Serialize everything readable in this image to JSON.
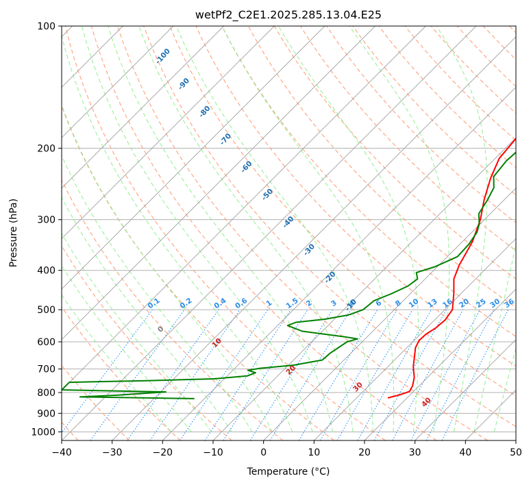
{
  "chart_data": {
    "type": "line",
    "title": "wetPf2_C2E1.2025.285.13.04.E25",
    "xlabel": "Temperature (°C)",
    "ylabel": "Pressure (hPa)",
    "xlim": [
      -40,
      50
    ],
    "ylim": [
      1050,
      100
    ],
    "y_scale": "log",
    "x_ticks": [
      "−40",
      "−30",
      "−20",
      "−10",
      "0",
      "10",
      "20",
      "30",
      "40",
      "50"
    ],
    "x_tick_values": [
      -40,
      -30,
      -20,
      -10,
      0,
      10,
      20,
      30,
      40,
      50
    ],
    "y_ticks": [
      "100",
      "200",
      "300",
      "400",
      "500",
      "600",
      "700",
      "800",
      "900",
      "1000"
    ],
    "y_tick_values": [
      100,
      200,
      300,
      400,
      500,
      600,
      700,
      800,
      900,
      1000
    ],
    "grid": true,
    "colors": {
      "temperature": "#ff0000",
      "dewpoint": "#008000",
      "isotherm": "#a0a0a0",
      "dry_adiabat": "#ffa07a",
      "moist_adiabat": "#90ee90",
      "mixing_ratio": "#1e90ff",
      "dry_adiabat_label": "#cc2222",
      "moist_adiabat_label": "#1f6fb0",
      "mixing_label": "#2c8ee8"
    },
    "series": [
      {
        "key": "temperature",
        "points": [
          [
            16.2,
            825
          ],
          [
            18.0,
            810
          ],
          [
            19.2,
            795
          ],
          [
            18.7,
            770
          ],
          [
            17.4,
            735
          ],
          [
            15.0,
            690
          ],
          [
            13.4,
            655
          ],
          [
            11.7,
            620
          ],
          [
            11.0,
            595
          ],
          [
            11.1,
            575
          ],
          [
            11.8,
            555
          ],
          [
            12.1,
            530
          ],
          [
            11.5,
            500
          ],
          [
            8.5,
            455
          ],
          [
            5.7,
            420
          ],
          [
            4.0,
            388
          ],
          [
            2.0,
            340
          ],
          [
            -0.8,
            300
          ],
          [
            -4.0,
            268
          ],
          [
            -7.0,
            237
          ],
          [
            -9.2,
            212
          ],
          [
            -9.8,
            190
          ],
          [
            -8.6,
            175
          ],
          [
            -3.8,
            163
          ],
          [
            2.0,
            152
          ],
          [
            6.0,
            136
          ],
          [
            11.0,
            118
          ],
          [
            16.5,
            103
          ],
          [
            18.0,
            100
          ]
        ]
      },
      {
        "key": "dewpoint",
        "points": [
          [
            -22.0,
            828
          ],
          [
            -45.0,
            820
          ],
          [
            -38.0,
            812
          ],
          [
            -29.0,
            797
          ],
          [
            -50.0,
            788
          ],
          [
            -50.0,
            755
          ],
          [
            -35.0,
            748
          ],
          [
            -22.0,
            740
          ],
          [
            -16.0,
            728
          ],
          [
            -15.0,
            715
          ],
          [
            -17.0,
            705
          ],
          [
            -15.0,
            697
          ],
          [
            -9.0,
            685
          ],
          [
            -4.3,
            665
          ],
          [
            -4.1,
            640
          ],
          [
            -3.0,
            600
          ],
          [
            -1.5,
            590
          ],
          [
            -5.0,
            582
          ],
          [
            -14.0,
            565
          ],
          [
            -18.0,
            547
          ],
          [
            -17.0,
            537
          ],
          [
            -12.0,
            528
          ],
          [
            -8.0,
            515
          ],
          [
            -6.2,
            500
          ],
          [
            -5.8,
            475
          ],
          [
            -3.8,
            457
          ],
          [
            -2.0,
            437
          ],
          [
            -1.5,
            420
          ],
          [
            -3.0,
            405
          ],
          [
            -0.5,
            392
          ],
          [
            2.0,
            370
          ],
          [
            1.8,
            345
          ],
          [
            1.0,
            322
          ],
          [
            -0.2,
            307
          ],
          [
            -2.3,
            290
          ],
          [
            -3.3,
            268
          ],
          [
            -4.5,
            250
          ],
          [
            -6.7,
            235
          ],
          [
            -7.3,
            215
          ],
          [
            -6.9,
            195
          ],
          [
            -7.3,
            176
          ],
          [
            -8.0,
            162
          ],
          [
            -9.2,
            152
          ],
          [
            -9.4,
            143
          ],
          [
            -8.3,
            136
          ],
          [
            -6.5,
            125
          ],
          [
            -4.6,
            112
          ],
          [
            -2.0,
            102
          ],
          [
            1.0,
            100
          ]
        ]
      }
    ],
    "dry_adiabat_labels": [
      "0",
      "10",
      "20",
      "30",
      "40"
    ],
    "dry_adiabat_label_values": [
      0,
      10,
      20,
      30,
      40
    ],
    "moist_adiabat_labels": [
      "-100",
      "-90",
      "-80",
      "-70",
      "-60",
      "-50",
      "-40",
      "-30",
      "-20",
      "-10"
    ],
    "moist_adiabat_label_values": [
      -100,
      -90,
      -80,
      -70,
      -60,
      -50,
      -40,
      -30,
      -20,
      -10
    ],
    "mixing_ratio_labels": [
      "0.1",
      "0.2",
      "0.4",
      "0.6",
      "1",
      "1.5",
      "2",
      "3",
      "4",
      "6",
      "8",
      "10",
      "13",
      "16",
      "20",
      "25",
      "30",
      "36"
    ],
    "mixing_ratio_values": [
      0.1,
      0.2,
      0.4,
      0.6,
      1,
      1.5,
      2,
      3,
      4,
      6,
      8,
      10,
      13,
      16,
      20,
      25,
      30,
      36
    ]
  }
}
